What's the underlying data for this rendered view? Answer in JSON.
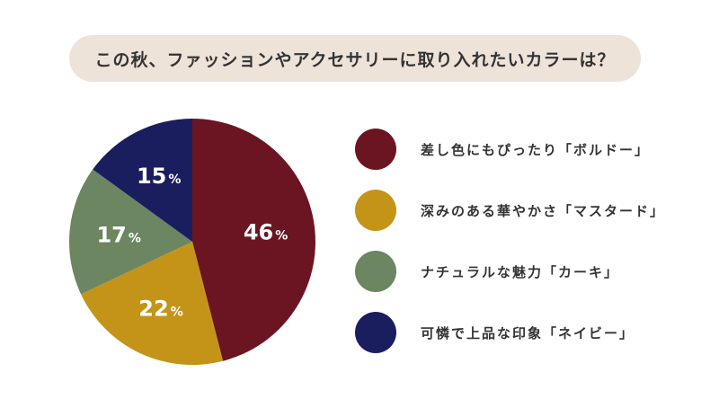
{
  "title": "この秋、ファッションやアクセサリーに取り入れたいカラーは？",
  "chart_data": {
    "type": "pie",
    "categories": [
      "差し色にもぴったり「ボルドー」",
      "深みのある華やかさ「マスタード」",
      "ナチュラルな魅力「カーキ」",
      "可憐で上品な印象「ネイビー」"
    ],
    "values": [
      46,
      22,
      17,
      15
    ],
    "unit": "%",
    "colors": [
      "#6b1522",
      "#c49419",
      "#6b8661",
      "#1a1d5e"
    ],
    "legend_position": "right"
  }
}
